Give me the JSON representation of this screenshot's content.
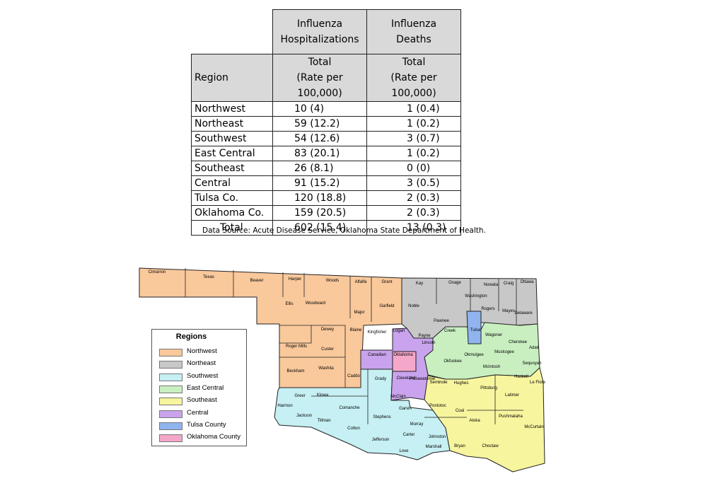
{
  "table": {
    "col_hosp_header": "Influenza\nHospitalizations",
    "col_death_header": "Influenza\nDeaths",
    "region_header": "Region",
    "sub_header": "Total\n(Rate per 100,000)",
    "rows": [
      {
        "region": "Northwest",
        "hosp": "10  (4)",
        "deaths": "1  (0.4)"
      },
      {
        "region": "Northeast",
        "hosp": "59  (12.2)",
        "deaths": "1  (0.2)"
      },
      {
        "region": "Southwest",
        "hosp": "54  (12.6)",
        "deaths": "3  (0.7)"
      },
      {
        "region": "East Central",
        "hosp": "83  (20.1)",
        "deaths": "1  (0.2)"
      },
      {
        "region": "Southeast",
        "hosp": "26  (8.1)",
        "deaths": "0  (0)"
      },
      {
        "region": "Central",
        "hosp": "91  (15.2)",
        "deaths": "3  (0.5)"
      },
      {
        "region": "Tulsa Co.",
        "hosp": "120  (18.8)",
        "deaths": "2  (0.3)"
      },
      {
        "region": "Oklahoma Co.",
        "hosp": "159  (20.5)",
        "deaths": "2  (0.3)"
      }
    ],
    "total": {
      "label": "Total",
      "hosp": "602  (15.4)",
      "deaths": "13  (0.3)"
    }
  },
  "source_note": "Data Source: Acute Disease Service, Oklahoma State Department of Health.",
  "legend": {
    "title": "Regions",
    "items": [
      {
        "label": "Northwest",
        "color": "#f9c89b"
      },
      {
        "label": "Northeast",
        "color": "#c8c8c8"
      },
      {
        "label": "Southwest",
        "color": "#c6f0f3"
      },
      {
        "label": "East Central",
        "color": "#c9efc1"
      },
      {
        "label": "Southeast",
        "color": "#f7f59e"
      },
      {
        "label": "Central",
        "color": "#c9a3ed"
      },
      {
        "label": "Tulsa County",
        "color": "#8fb4ee"
      },
      {
        "label": "Oklahoma County",
        "color": "#f4a7c9"
      }
    ]
  },
  "map": {
    "counties": [
      "Cimarron",
      "Texas",
      "Beaver",
      "Harper",
      "Woods",
      "Alfalfa",
      "Grant",
      "Kay",
      "Osage",
      "Nowata",
      "Craig",
      "Ottawa",
      "Washington",
      "Rogers",
      "Mayes",
      "Delaware",
      "Ellis",
      "Woodward",
      "Major",
      "Garfield",
      "Noble",
      "Pawnee",
      "Tulsa",
      "Dewey",
      "Blaine",
      "Kingfisher",
      "Logan",
      "Payne",
      "Creek",
      "Wagoner",
      "Cherokee",
      "Adair",
      "Roger Mills",
      "Custer",
      "Canadian",
      "Oklahoma",
      "Lincoln",
      "Okmulgee",
      "Muskogee",
      "Sequoyah",
      "Okfuskee",
      "McIntosh",
      "Beckham",
      "Washita",
      "Caddo",
      "Grady",
      "Cleveland",
      "Pottawatomie",
      "Seminole",
      "Hughes",
      "Pittsburg",
      "Haskell",
      "Le Flore",
      "Latimer",
      "Harmon",
      "Greer",
      "Kiowa",
      "Jackson",
      "Comanche",
      "McClain",
      "Garvin",
      "Pontotoc",
      "Coal",
      "Tillman",
      "Cotton",
      "Stephens",
      "Murray",
      "Carter",
      "Johnston",
      "Atoka",
      "Pushmataha",
      "McCurtain",
      "Jefferson",
      "Love",
      "Marshall",
      "Bryan",
      "Choctaw"
    ]
  }
}
